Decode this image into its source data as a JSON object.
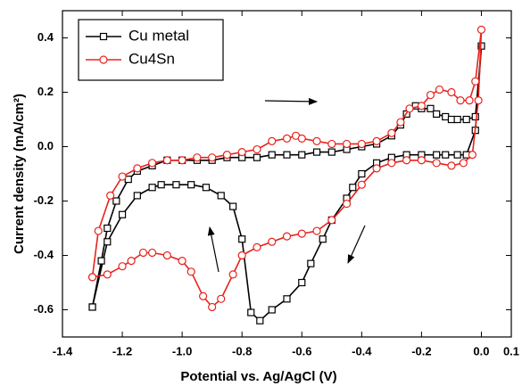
{
  "chart_data": {
    "type": "line",
    "x_label": "Potential vs. Ag/AgCl (V)",
    "y_label": "Current density (mA/cm²)",
    "xlim": [
      -1.4,
      0.1
    ],
    "ylim": [
      -0.7,
      0.5
    ],
    "xticks": [
      -1.4,
      -1.2,
      {
        "value": -1,
        "label": "-1.0"
      },
      -0.8,
      -0.6,
      -0.4,
      -0.2,
      {
        "value": 0,
        "label": "0.0"
      },
      0.1
    ],
    "yticks": [
      0.4,
      0.2,
      {
        "value": 0,
        "label": "0.0"
      },
      -0.2,
      -0.4,
      -0.6
    ],
    "legend": "upper left",
    "series": [
      {
        "name": "Cu metal",
        "color": "#000000",
        "marker": "square",
        "x": [
          -1.3,
          -1.27,
          -1.25,
          -1.22,
          -1.18,
          -1.15,
          -1.1,
          -1.05,
          -1.0,
          -0.95,
          -0.9,
          -0.85,
          -0.8,
          -0.75,
          -0.7,
          -0.65,
          -0.6,
          -0.55,
          -0.5,
          -0.45,
          -0.4,
          -0.35,
          -0.3,
          -0.27,
          -0.25,
          -0.22,
          -0.2,
          -0.17,
          -0.15,
          -0.12,
          -0.1,
          -0.08,
          -0.05,
          -0.02,
          0.0,
          -0.02,
          -0.05,
          -0.08,
          -0.12,
          -0.15,
          -0.2,
          -0.25,
          -0.3,
          -0.35,
          -0.4,
          -0.43,
          -0.45,
          -0.5,
          -0.53,
          -0.57,
          -0.6,
          -0.65,
          -0.7,
          -0.74,
          -0.77,
          -0.8,
          -0.83,
          -0.87,
          -0.92,
          -0.97,
          -1.02,
          -1.07,
          -1.1,
          -1.15,
          -1.2,
          -1.25,
          -1.3
        ],
        "values": [
          -0.59,
          -0.42,
          -0.3,
          -0.2,
          -0.12,
          -0.09,
          -0.07,
          -0.05,
          -0.05,
          -0.05,
          -0.05,
          -0.04,
          -0.04,
          -0.04,
          -0.03,
          -0.03,
          -0.03,
          -0.02,
          -0.02,
          -0.01,
          0.0,
          0.01,
          0.04,
          0.08,
          0.12,
          0.15,
          0.14,
          0.14,
          0.12,
          0.11,
          0.1,
          0.1,
          0.1,
          0.11,
          0.37,
          0.06,
          -0.03,
          -0.03,
          -0.03,
          -0.03,
          -0.03,
          -0.03,
          -0.04,
          -0.06,
          -0.1,
          -0.15,
          -0.19,
          -0.27,
          -0.34,
          -0.43,
          -0.5,
          -0.56,
          -0.6,
          -0.64,
          -0.61,
          -0.34,
          -0.22,
          -0.18,
          -0.15,
          -0.14,
          -0.14,
          -0.14,
          -0.15,
          -0.18,
          -0.25,
          -0.35,
          -0.59
        ]
      },
      {
        "name": "Cu4Sn",
        "color": "#e8221b",
        "marker": "circle",
        "x": [
          -1.3,
          -1.28,
          -1.24,
          -1.2,
          -1.15,
          -1.1,
          -1.05,
          -1.0,
          -0.95,
          -0.9,
          -0.85,
          -0.8,
          -0.75,
          -0.7,
          -0.65,
          -0.62,
          -0.6,
          -0.55,
          -0.5,
          -0.45,
          -0.4,
          -0.35,
          -0.3,
          -0.27,
          -0.24,
          -0.2,
          -0.17,
          -0.14,
          -0.1,
          -0.07,
          -0.04,
          -0.02,
          0.0,
          -0.01,
          -0.03,
          -0.06,
          -0.1,
          -0.15,
          -0.2,
          -0.25,
          -0.3,
          -0.35,
          -0.4,
          -0.45,
          -0.5,
          -0.55,
          -0.6,
          -0.65,
          -0.7,
          -0.75,
          -0.8,
          -0.83,
          -0.87,
          -0.9,
          -0.93,
          -0.97,
          -1.0,
          -1.05,
          -1.1,
          -1.13,
          -1.17,
          -1.2,
          -1.25,
          -1.3
        ],
        "values": [
          -0.48,
          -0.31,
          -0.18,
          -0.11,
          -0.08,
          -0.06,
          -0.05,
          -0.05,
          -0.04,
          -0.04,
          -0.03,
          -0.02,
          -0.01,
          0.02,
          0.03,
          0.04,
          0.03,
          0.02,
          0.01,
          0.01,
          0.01,
          0.02,
          0.05,
          0.09,
          0.14,
          0.15,
          0.19,
          0.21,
          0.2,
          0.17,
          0.17,
          0.24,
          0.43,
          0.17,
          -0.03,
          -0.06,
          -0.07,
          -0.06,
          -0.05,
          -0.05,
          -0.06,
          -0.08,
          -0.14,
          -0.21,
          -0.27,
          -0.31,
          -0.32,
          -0.33,
          -0.35,
          -0.37,
          -0.4,
          -0.47,
          -0.56,
          -0.59,
          -0.55,
          -0.46,
          -0.42,
          -0.4,
          -0.39,
          -0.39,
          -0.42,
          -0.44,
          -0.47,
          -0.48
        ]
      }
    ]
  }
}
